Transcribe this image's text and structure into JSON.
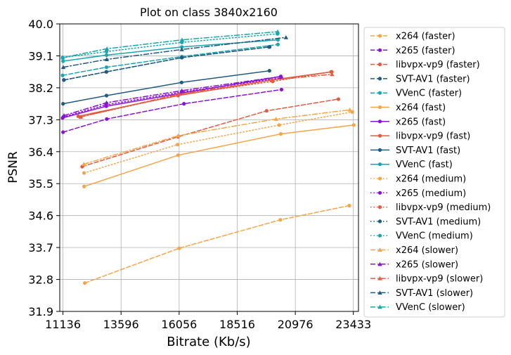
{
  "chart_data": {
    "type": "line",
    "title": "Plot on class 3840x2160",
    "xlabel": "Bitrate (Kb/s)",
    "ylabel": "PSNR",
    "xlim": [
      11000,
      23650
    ],
    "ylim": [
      31.9,
      40.0
    ],
    "xticks": [
      11136,
      13596,
      16056,
      18516,
      20976,
      23433
    ],
    "xtick_labels": [
      "11136",
      "13596",
      "16056",
      "18516",
      "20976",
      "23433"
    ],
    "yticks": [
      31.9,
      32.8,
      33.7,
      34.6,
      35.5,
      36.4,
      37.3,
      38.2,
      39.1,
      40.0
    ],
    "ytick_labels": [
      "31.9",
      "32.8",
      "33.7",
      "34.6",
      "35.5",
      "36.4",
      "37.3",
      "38.2",
      "39.1",
      "40.0"
    ],
    "grid": true,
    "legend_position": "outside-right",
    "series": [
      {
        "name": "x264 (faster)",
        "color": "#f5a447",
        "dash": "dashed",
        "marker": "circle",
        "x": [
          12060,
          16060,
          20340,
          23260
        ],
        "y": [
          32.7,
          33.68,
          34.48,
          34.88
        ]
      },
      {
        "name": "x265 (faster)",
        "color": "#8b10d7",
        "dash": "dashed",
        "marker": "circle",
        "x": [
          11140,
          12990,
          16260,
          20390
        ],
        "y": [
          36.95,
          37.32,
          37.75,
          38.15
        ]
      },
      {
        "name": "libvpx-vp9 (faster)",
        "color": "#e45a40",
        "dash": "dashed",
        "marker": "circle",
        "x": [
          11950,
          16010,
          19760,
          22800
        ],
        "y": [
          35.98,
          36.82,
          37.55,
          37.88
        ]
      },
      {
        "name": "SVT-AV1 (faster)",
        "color": "#1f5a80",
        "dash": "dashed",
        "marker": "circle",
        "x": [
          11170,
          12970,
          16170,
          19860
        ],
        "y": [
          38.42,
          38.65,
          39.05,
          39.35
        ]
      },
      {
        "name": "VVenC (faster)",
        "color": "#16a6b0",
        "dash": "dashed",
        "marker": "circle",
        "x": [
          11120,
          12980,
          16170,
          20240
        ],
        "y": [
          38.55,
          38.78,
          39.08,
          39.42
        ]
      },
      {
        "name": "x264 (fast)",
        "color": "#f5a447",
        "dash": "solid",
        "marker": "circle",
        "x": [
          12030,
          16010,
          20360,
          23450
        ],
        "y": [
          35.42,
          36.3,
          36.9,
          37.15
        ]
      },
      {
        "name": "x265 (fast)",
        "color": "#8b10d7",
        "dash": "solid",
        "marker": "circle",
        "x": [
          11120,
          12970,
          16160,
          20360
        ],
        "y": [
          37.35,
          37.68,
          38.05,
          38.52
        ]
      },
      {
        "name": "libvpx-vp9 (fast)",
        "color": "#e45a40",
        "dash": "solid",
        "marker": "circle",
        "x": [
          11780,
          16010,
          19980,
          22490
        ],
        "y": [
          37.4,
          37.98,
          38.42,
          38.65
        ]
      },
      {
        "name": "SVT-AV1 (fast)",
        "color": "#1f5a80",
        "dash": "solid",
        "marker": "circle",
        "x": [
          11140,
          12980,
          16160,
          19880
        ],
        "y": [
          37.75,
          37.98,
          38.35,
          38.68
        ]
      },
      {
        "name": "VVenC (fast)",
        "color": "#16a6b0",
        "dash": "solid",
        "marker": "circle",
        "x": [
          11140,
          12980,
          16170,
          20240
        ],
        "y": [
          38.95,
          39.12,
          39.35,
          39.55
        ]
      },
      {
        "name": "x264 (medium)",
        "color": "#f5a447",
        "dash": "dotted",
        "marker": "circle",
        "x": [
          12030,
          15990,
          20290,
          23390
        ],
        "y": [
          35.8,
          36.6,
          37.15,
          37.52
        ]
      },
      {
        "name": "x265 (medium)",
        "color": "#8b10d7",
        "dash": "dotted",
        "marker": "circle",
        "x": [
          11150,
          12960,
          16170,
          20370
        ],
        "y": [
          37.38,
          37.72,
          38.08,
          38.48
        ]
      },
      {
        "name": "libvpx-vp9 (medium)",
        "color": "#e45a40",
        "dash": "dotted",
        "marker": "circle",
        "x": [
          11890,
          16020,
          20020,
          22520
        ],
        "y": [
          37.38,
          38.0,
          38.38,
          38.65
        ]
      },
      {
        "name": "SVT-AV1 (medium)",
        "color": "#1f5a80",
        "dash": "dotted",
        "marker": "circle",
        "x": [
          11180,
          12980,
          16170,
          19890
        ],
        "y": [
          38.42,
          38.65,
          39.05,
          39.35
        ]
      },
      {
        "name": "VVenC (medium)",
        "color": "#16a6b0",
        "dash": "dotted",
        "marker": "circle",
        "x": [
          11120,
          12980,
          16170,
          20220
        ],
        "y": [
          39.05,
          39.22,
          39.48,
          39.72
        ]
      },
      {
        "name": "x264 (slower)",
        "color": "#f5a447",
        "dash": "dashdot",
        "marker": "triangle",
        "x": [
          12020,
          16010,
          20160,
          23280
        ],
        "y": [
          36.05,
          36.85,
          37.32,
          37.58
        ]
      },
      {
        "name": "x265 (slower)",
        "color": "#8b10d7",
        "dash": "dashdot",
        "marker": "triangle",
        "x": [
          11180,
          12980,
          16170,
          20380
        ],
        "y": [
          37.42,
          37.78,
          38.12,
          38.52
        ]
      },
      {
        "name": "libvpx-vp9 (slower)",
        "color": "#e45a40",
        "dash": "dashdot",
        "marker": "triangle",
        "x": [
          11890,
          16020,
          19980,
          22530
        ],
        "y": [
          37.38,
          38.02,
          38.42,
          38.58
        ]
      },
      {
        "name": "SVT-AV1 (slower)",
        "color": "#1f5a80",
        "dash": "dashdot",
        "marker": "triangle",
        "x": [
          11150,
          12990,
          16170,
          20580
        ],
        "y": [
          38.78,
          39.0,
          39.28,
          39.62
        ]
      },
      {
        "name": "VVenC (slower)",
        "color": "#16a6b0",
        "dash": "dashdot",
        "marker": "triangle",
        "x": [
          11130,
          13000,
          16180,
          20230
        ],
        "y": [
          39.05,
          39.3,
          39.55,
          39.78
        ]
      }
    ]
  }
}
